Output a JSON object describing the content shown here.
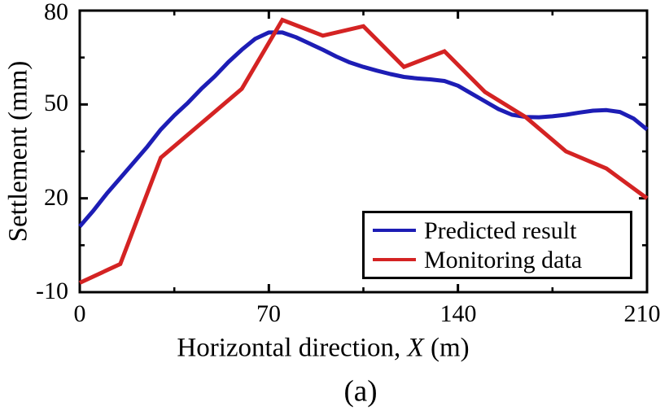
{
  "figure": {
    "caption": "(a)",
    "background": "#ffffff"
  },
  "chart_data": {
    "type": "line",
    "title": "",
    "xlabel": {
      "prefix": "Horizontal direction, ",
      "variable": "X",
      "suffix": " (m)"
    },
    "ylabel": "Settlement (mm)",
    "xlim": [
      0,
      210
    ],
    "ylim": [
      -10,
      80
    ],
    "x_ticks": [
      0,
      70,
      140,
      210
    ],
    "x_minor_ticks": [
      35,
      105,
      175
    ],
    "y_ticks": [
      -10,
      20,
      50,
      80
    ],
    "y_minor_ticks": [
      5,
      35,
      65
    ],
    "grid": false,
    "frame": true,
    "tick_direction": "in",
    "legend_position": "inside-bottom-right",
    "axis_color": "#000000",
    "series": [
      {
        "name": "Predicted result",
        "color": "#1d1db5",
        "x": [
          0,
          5,
          10,
          15,
          20,
          25,
          30,
          35,
          40,
          45,
          50,
          55,
          60,
          65,
          70,
          75,
          80,
          85,
          90,
          95,
          100,
          105,
          110,
          115,
          120,
          125,
          130,
          135,
          140,
          145,
          150,
          155,
          160,
          165,
          170,
          175,
          180,
          185,
          190,
          195,
          200,
          205,
          210
        ],
        "y": [
          11,
          16,
          21.5,
          26.5,
          31.5,
          36.5,
          42,
          46.5,
          50.5,
          55,
          59,
          63.5,
          67.5,
          71,
          73,
          73,
          71.5,
          69.5,
          67.5,
          65.3,
          63.4,
          62,
          60.8,
          59.7,
          58.8,
          58.3,
          58,
          57.5,
          56,
          53.5,
          51,
          48.5,
          46.7,
          46,
          45.9,
          46.2,
          46.7,
          47.4,
          48,
          48.2,
          47.6,
          45.5,
          42
        ]
      },
      {
        "name": "Monitoring data",
        "color": "#d42323",
        "x": [
          0,
          15,
          30,
          45,
          60,
          75,
          90,
          105,
          120,
          135,
          150,
          165,
          180,
          195,
          210
        ],
        "y": [
          -7,
          -1,
          33,
          44,
          55,
          77,
          72,
          75,
          62,
          67,
          54,
          46,
          35,
          29.5,
          20
        ]
      }
    ]
  }
}
